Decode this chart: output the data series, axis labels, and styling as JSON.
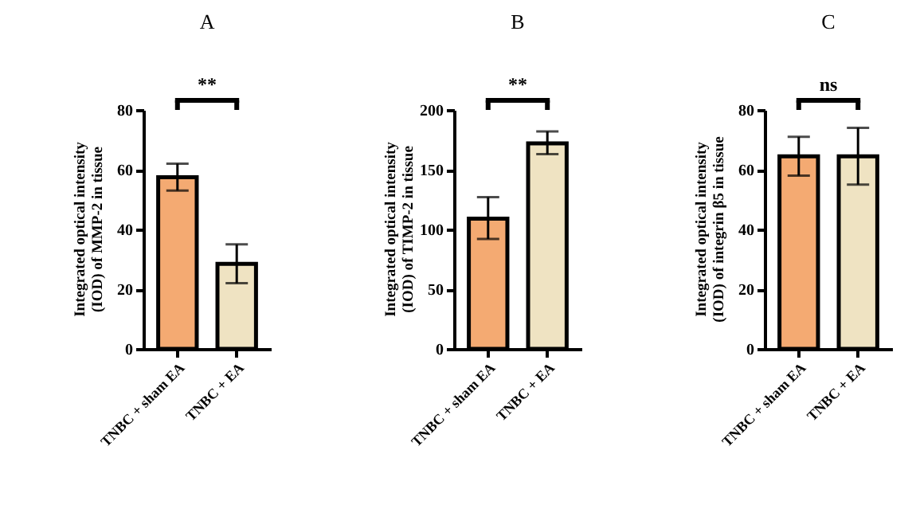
{
  "chart_data": [
    {
      "type": "bar",
      "title": "A",
      "ylabel": "Integrated optical intensity\n(IOD) of MMP-2  in tissue",
      "categories": [
        "TNBC + sham EA",
        "TNBC + EA"
      ],
      "values": [
        57.5,
        28.5
      ],
      "colors": [
        "#f4aa72",
        "#efe3c2"
      ],
      "errors": [
        [
          53,
          62
        ],
        [
          22,
          35
        ]
      ],
      "ylim": [
        0,
        80
      ],
      "yticks": [
        0,
        20,
        40,
        60,
        80
      ],
      "grid": false,
      "annotations": [
        "**"
      ]
    },
    {
      "type": "bar",
      "title": "B",
      "ylabel": "Integrated optical intensity\n(IOD) of TIMP-2  in tissue",
      "categories": [
        "TNBC + sham EA",
        "TNBC + EA"
      ],
      "values": [
        109,
        172
      ],
      "colors": [
        "#f4aa72",
        "#efe3c2"
      ],
      "errors": [
        [
          92,
          127
        ],
        [
          163,
          182
        ]
      ],
      "ylim": [
        0,
        200
      ],
      "yticks": [
        0,
        50,
        100,
        150,
        200
      ],
      "grid": false,
      "annotations": [
        "**"
      ]
    },
    {
      "type": "bar",
      "title": "C",
      "ylabel": "Integrated optical intensity\n(IOD) of  integrin β5 in tissue",
      "categories": [
        "TNBC + sham EA",
        "TNBC + EA"
      ],
      "values": [
        64.5,
        64.5
      ],
      "colors": [
        "#f4aa72",
        "#efe3c2"
      ],
      "errors": [
        [
          58,
          71
        ],
        [
          55,
          74
        ]
      ],
      "ylim": [
        0,
        80
      ],
      "yticks": [
        0,
        20,
        40,
        60,
        80
      ],
      "grid": false,
      "annotations": [
        "ns"
      ]
    }
  ]
}
